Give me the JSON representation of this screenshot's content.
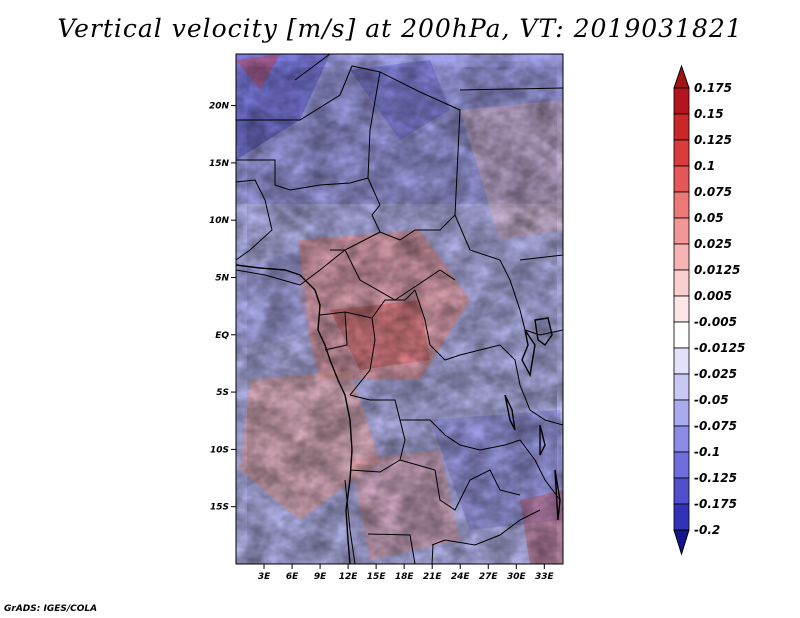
{
  "title": "Vertical velocity [m/s] at 200hPa, VT: 2019031821",
  "credit": "GrADS: IGES/COLA",
  "map": {
    "lon_range": [
      0,
      35
    ],
    "lat_range": [
      -20,
      24.5
    ],
    "lat_ticks": [
      {
        "value": 20,
        "label": "20N"
      },
      {
        "value": 15,
        "label": "15N"
      },
      {
        "value": 10,
        "label": "10N"
      },
      {
        "value": 5,
        "label": "5N"
      },
      {
        "value": 0,
        "label": "EQ"
      },
      {
        "value": -5,
        "label": "5S"
      },
      {
        "value": -10,
        "label": "10S"
      },
      {
        "value": -15,
        "label": "15S"
      }
    ],
    "lon_ticks": [
      {
        "value": 3,
        "label": "3E"
      },
      {
        "value": 6,
        "label": "6E"
      },
      {
        "value": 9,
        "label": "9E"
      },
      {
        "value": 12,
        "label": "12E"
      },
      {
        "value": 15,
        "label": "15E"
      },
      {
        "value": 18,
        "label": "18E"
      },
      {
        "value": 21,
        "label": "21E"
      },
      {
        "value": 24,
        "label": "24E"
      },
      {
        "value": 27,
        "label": "27E"
      },
      {
        "value": 30,
        "label": "30E"
      },
      {
        "value": 33,
        "label": "33E"
      }
    ]
  },
  "colorbar": {
    "levels": [
      {
        "label": "0.175",
        "color": "#b4141e"
      },
      {
        "label": "0.15",
        "color": "#c82828"
      },
      {
        "label": "0.125",
        "color": "#d83c3c"
      },
      {
        "label": "0.1",
        "color": "#e45858"
      },
      {
        "label": "0.075",
        "color": "#ec7878"
      },
      {
        "label": "0.05",
        "color": "#f29696"
      },
      {
        "label": "0.025",
        "color": "#f6b4b4"
      },
      {
        "label": "0.0125",
        "color": "#f9cfcf"
      },
      {
        "label": "0.005",
        "color": "#fce6e6"
      },
      {
        "label": "-0.005",
        "color": "#ffffff"
      },
      {
        "label": "-0.0125",
        "color": "#e2e2fa"
      },
      {
        "label": "-0.025",
        "color": "#c8c8f4"
      },
      {
        "label": "-0.05",
        "color": "#aaaaee"
      },
      {
        "label": "-0.075",
        "color": "#8c8ce6"
      },
      {
        "label": "-0.1",
        "color": "#6e6edc"
      },
      {
        "label": "-0.125",
        "color": "#5050cc"
      },
      {
        "label": "-0.175",
        "color": "#3232b8"
      },
      {
        "label": "-0.2",
        "color": "#1e1ea0"
      }
    ],
    "top_color": "#a01414",
    "bottom_color": "#14148c"
  }
}
